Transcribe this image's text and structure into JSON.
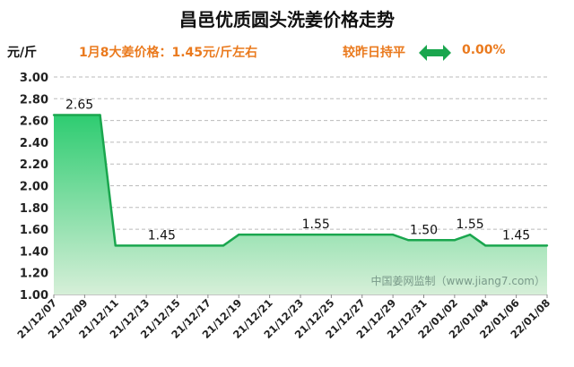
{
  "header": {
    "title": "昌邑优质圆头洗姜价格走势",
    "unit": "元/斤",
    "price_note": "1月8大姜价格：1.45元/斤左右",
    "compare_label": "较昨日持平",
    "change": "0.00%",
    "arrow_icon": "double-arrow-icon"
  },
  "watermark": "中国姜网监制（www.jiang7.com）",
  "colors": {
    "line": "#1aa64e",
    "fill_top": "#2ecc71",
    "fill_bottom": "#d6efd8",
    "accent": "#ea7a1e",
    "grid": "#bbbbbb"
  },
  "chart_data": {
    "type": "area",
    "title": "昌邑优质圆头洗姜价格走势",
    "ylabel": "元/斤",
    "ylim": [
      1.0,
      3.0
    ],
    "yticks": [
      "1.00",
      "1.20",
      "1.40",
      "1.60",
      "1.80",
      "2.00",
      "2.20",
      "2.40",
      "2.60",
      "2.80",
      "3.00"
    ],
    "grid": true,
    "xlim": [
      "2021-12-07",
      "2022-01-08"
    ],
    "xtick_labels": [
      "21/12/07",
      "21/12/09",
      "21/12/11",
      "21/12/13",
      "21/12/15",
      "21/12/17",
      "21/12/19",
      "21/12/21",
      "21/12/23",
      "21/12/25",
      "21/12/27",
      "21/12/29",
      "21/12/31",
      "22/01/02",
      "22/01/04",
      "22/01/06",
      "22/01/08"
    ],
    "points": [
      {
        "x": "2021-12-07",
        "y": 2.65
      },
      {
        "x": "2021-12-10",
        "y": 2.65
      },
      {
        "x": "2021-12-11",
        "y": 1.45
      },
      {
        "x": "2021-12-18",
        "y": 1.45
      },
      {
        "x": "2021-12-19",
        "y": 1.55
      },
      {
        "x": "2021-12-29",
        "y": 1.55
      },
      {
        "x": "2021-12-30",
        "y": 1.5
      },
      {
        "x": "2022-01-02",
        "y": 1.5
      },
      {
        "x": "2022-01-03",
        "y": 1.55
      },
      {
        "x": "2022-01-04",
        "y": 1.45
      },
      {
        "x": "2022-01-08",
        "y": 1.45
      }
    ],
    "data_labels": [
      {
        "x": "2021-12-07",
        "y": 2.65,
        "text": "2.65"
      },
      {
        "x": "2021-12-14",
        "y": 1.45,
        "text": "1.45"
      },
      {
        "x": "2021-12-24",
        "y": 1.55,
        "text": "1.55"
      },
      {
        "x": "2021-12-31",
        "y": 1.5,
        "text": "1.50"
      },
      {
        "x": "2022-01-03",
        "y": 1.55,
        "text": "1.55"
      },
      {
        "x": "2022-01-06",
        "y": 1.45,
        "text": "1.45"
      }
    ]
  }
}
